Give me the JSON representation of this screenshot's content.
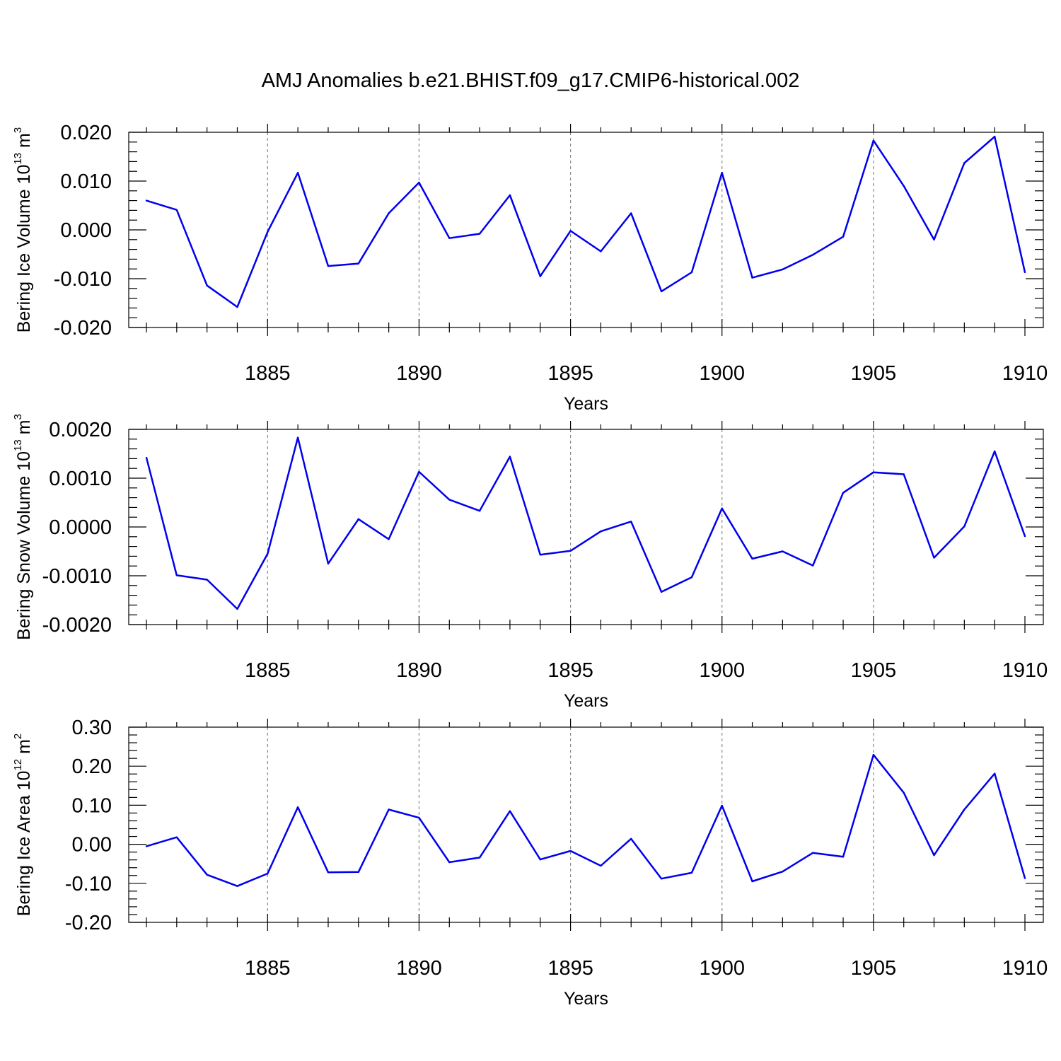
{
  "figure": {
    "title": "AMJ Anomalies b.e21.BHIST.f09_g17.CMIP6-historical.002"
  },
  "chart_data": [
    {
      "type": "line",
      "title": "AMJ Anomalies b.e21.BHIST.f09_g17.CMIP6-historical.002",
      "xlabel": "Years",
      "ylabel": {
        "base": "Bering Ice Volume 10",
        "exp": "13",
        "unit": " m",
        "unit_exp": "3"
      },
      "xlim": [
        1881,
        1910
      ],
      "ylim": [
        -0.02,
        0.02
      ],
      "xticks": [
        1885,
        1890,
        1895,
        1900,
        1905,
        1910
      ],
      "yticks": [
        -0.02,
        -0.01,
        0.0,
        0.01,
        0.02
      ],
      "ytick_labels": [
        "-0.020",
        "-0.010",
        "0.000",
        "0.010",
        "0.020"
      ],
      "grid": "vertical dashed at major x ticks",
      "color": "#0000ee",
      "x": [
        1881,
        1882,
        1883,
        1884,
        1885,
        1886,
        1887,
        1888,
        1889,
        1890,
        1891,
        1892,
        1893,
        1894,
        1895,
        1896,
        1897,
        1898,
        1899,
        1900,
        1901,
        1902,
        1903,
        1904,
        1905,
        1906,
        1907,
        1908,
        1909,
        1910
      ],
      "values": [
        0.006,
        0.0041,
        -0.0114,
        -0.0158,
        -0.0004,
        0.0117,
        -0.0074,
        -0.0069,
        0.0034,
        0.0097,
        -0.0017,
        -0.0008,
        0.0071,
        -0.0095,
        -0.0002,
        -0.0044,
        0.0034,
        -0.0126,
        -0.0087,
        0.0117,
        -0.0098,
        -0.0081,
        -0.0051,
        -0.0014,
        0.0183,
        0.009,
        -0.002,
        0.0137,
        0.0191,
        -0.0087
      ]
    },
    {
      "type": "line",
      "xlabel": "Years",
      "ylabel": {
        "base": "Bering Snow Volume 10",
        "exp": "13",
        "unit": " m",
        "unit_exp": "3"
      },
      "xlim": [
        1881,
        1910
      ],
      "ylim": [
        -0.002,
        0.002
      ],
      "xticks": [
        1885,
        1890,
        1895,
        1900,
        1905,
        1910
      ],
      "yticks": [
        -0.002,
        -0.001,
        0.0,
        0.001,
        0.002
      ],
      "ytick_labels": [
        "-0.0020",
        "-0.0010",
        "0.0000",
        "0.0010",
        "0.0020"
      ],
      "grid": "vertical dashed at major x ticks",
      "color": "#0000ee",
      "x": [
        1881,
        1882,
        1883,
        1884,
        1885,
        1886,
        1887,
        1888,
        1889,
        1890,
        1891,
        1892,
        1893,
        1894,
        1895,
        1896,
        1897,
        1898,
        1899,
        1900,
        1901,
        1902,
        1903,
        1904,
        1905,
        1906,
        1907,
        1908,
        1909,
        1910
      ],
      "values": [
        0.00142,
        -0.00099,
        -0.00108,
        -0.00168,
        -0.00055,
        0.00183,
        -0.00075,
        0.00016,
        -0.00025,
        0.00113,
        0.00056,
        0.00033,
        0.00144,
        -0.00057,
        -0.00049,
        -9e-05,
        0.00011,
        -0.00133,
        -0.00103,
        0.00038,
        -0.00065,
        -0.0005,
        -0.00079,
        0.0007,
        0.00112,
        0.00108,
        -0.00063,
        1e-05,
        0.00155,
        -0.00019
      ]
    },
    {
      "type": "line",
      "xlabel": "Years",
      "ylabel": {
        "base": "Bering Ice Area 10",
        "exp": "12",
        "unit": " m",
        "unit_exp": "2"
      },
      "xlim": [
        1881,
        1910
      ],
      "ylim": [
        -0.2,
        0.3
      ],
      "xticks": [
        1885,
        1890,
        1895,
        1900,
        1905,
        1910
      ],
      "yticks": [
        -0.2,
        -0.1,
        0.0,
        0.1,
        0.2,
        0.3
      ],
      "ytick_labels": [
        "-0.20",
        "-0.10",
        "0.00",
        "0.10",
        "0.20",
        "0.30"
      ],
      "grid": "vertical dashed at major x ticks",
      "color": "#0000ee",
      "x": [
        1881,
        1882,
        1883,
        1884,
        1885,
        1886,
        1887,
        1888,
        1889,
        1890,
        1891,
        1892,
        1893,
        1894,
        1895,
        1896,
        1897,
        1898,
        1899,
        1900,
        1901,
        1902,
        1903,
        1904,
        1905,
        1906,
        1907,
        1908,
        1909,
        1910
      ],
      "values": [
        -0.005,
        0.018,
        -0.078,
        -0.107,
        -0.075,
        0.095,
        -0.072,
        -0.071,
        0.089,
        0.068,
        -0.046,
        -0.034,
        0.085,
        -0.039,
        -0.017,
        -0.055,
        0.014,
        -0.088,
        -0.073,
        0.099,
        -0.095,
        -0.07,
        -0.022,
        -0.032,
        0.229,
        0.132,
        -0.028,
        0.089,
        0.181,
        -0.087
      ]
    }
  ]
}
